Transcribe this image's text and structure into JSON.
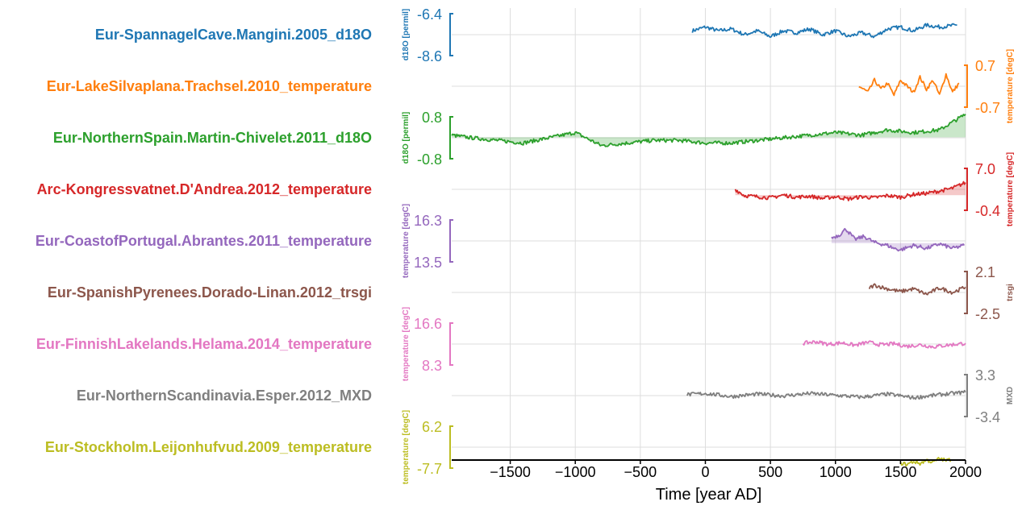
{
  "chart_data": {
    "type": "line",
    "layout": "stacked",
    "xlabel": "Time [year AD]",
    "xlim": [
      -1950,
      2000
    ],
    "xticks": [
      -1500,
      -1000,
      -500,
      0,
      500,
      1000,
      1500,
      2000
    ],
    "grid": true,
    "series": [
      {
        "name": "Eur-SpannagelCave.Mangini.2005_d18O",
        "color": "#1f77b4",
        "ylabel": "d18O [permil]",
        "ylim": [
          "-6.4",
          "-8.6"
        ],
        "yaxis_side": "left",
        "fill": false,
        "x": [
          -100,
          0,
          100,
          200,
          300,
          400,
          500,
          600,
          700,
          800,
          900,
          1000,
          1100,
          1200,
          1300,
          1400,
          1500,
          1600,
          1700,
          1800,
          1935
        ],
        "y": [
          -7.3,
          -7.1,
          -7.3,
          -7.2,
          -7.5,
          -7.3,
          -7.6,
          -7.3,
          -7.4,
          -7.2,
          -7.5,
          -7.3,
          -7.6,
          -7.4,
          -7.6,
          -7.2,
          -7.1,
          -7.3,
          -7.0,
          -7.1,
          -7.0
        ]
      },
      {
        "name": "Eur-LakeSilvaplana.Trachsel.2010_temperature",
        "color": "#ff7f0e",
        "ylabel": "temperature [degC]",
        "ylim": [
          "0.7",
          "-0.7"
        ],
        "yaxis_side": "right",
        "fill": false,
        "x": [
          1180,
          1250,
          1300,
          1350,
          1400,
          1450,
          1500,
          1550,
          1600,
          1650,
          1700,
          1750,
          1800,
          1850,
          1900,
          1950
        ],
        "y": [
          0.0,
          -0.2,
          0.2,
          -0.1,
          0.1,
          -0.3,
          0.2,
          0.0,
          -0.2,
          0.3,
          -0.1,
          0.2,
          -0.3,
          0.4,
          -0.2,
          0.1
        ]
      },
      {
        "name": "Eur-NorthernSpain.Martin-Chivelet.2011_d18O",
        "color": "#2ca02c",
        "ylabel": "d18O [permil]",
        "ylim": [
          "0.8",
          "-0.8"
        ],
        "yaxis_side": "left",
        "fill": true,
        "x": [
          -1950,
          -1800,
          -1600,
          -1400,
          -1200,
          -1000,
          -800,
          -600,
          -400,
          -200,
          0,
          200,
          400,
          600,
          800,
          1000,
          1200,
          1400,
          1600,
          1800,
          2000
        ],
        "y": [
          0.1,
          0.0,
          -0.1,
          -0.2,
          0.0,
          0.2,
          -0.3,
          -0.2,
          -0.1,
          -0.1,
          -0.2,
          -0.2,
          -0.1,
          0.0,
          0.1,
          0.2,
          0.1,
          0.3,
          0.2,
          0.3,
          0.9
        ]
      },
      {
        "name": "Arc-Kongressvatnet.D'Andrea.2012_temperature",
        "color": "#d62728",
        "ylabel": "temperature [degC]",
        "ylim": [
          "7.0",
          "-0.4"
        ],
        "yaxis_side": "right",
        "fill": true,
        "x": [
          230,
          300,
          400,
          500,
          600,
          700,
          800,
          900,
          1000,
          1100,
          1200,
          1300,
          1400,
          1500,
          1600,
          1700,
          1800,
          1900,
          2000
        ],
        "y": [
          3.3,
          2.2,
          2.0,
          1.8,
          2.3,
          1.9,
          2.1,
          1.7,
          2.0,
          1.6,
          2.0,
          1.8,
          2.2,
          1.9,
          2.4,
          2.6,
          3.0,
          3.5,
          4.5
        ]
      },
      {
        "name": "Eur-CoastofPortugal.Abrantes.2011_temperature",
        "color": "#9467bd",
        "ylabel": "temperature [degC]",
        "ylim": [
          "16.3",
          "13.5"
        ],
        "yaxis_side": "left",
        "fill": true,
        "x": [
          970,
          1030,
          1080,
          1150,
          1220,
          1300,
          1400,
          1450,
          1500,
          1600,
          1700,
          1800,
          1900,
          1990
        ],
        "y": [
          15.1,
          15.3,
          15.7,
          15.0,
          15.2,
          14.8,
          14.6,
          14.4,
          14.3,
          14.6,
          14.4,
          14.7,
          14.4,
          14.6
        ]
      },
      {
        "name": "Eur-SpanishPyrenees.Dorado-Linan.2012_trsgi",
        "color": "#8c564b",
        "ylabel": "trsgi",
        "ylim": [
          "2.1",
          "-2.5"
        ],
        "yaxis_side": "right",
        "fill": false,
        "x": [
          1260,
          1300,
          1400,
          1500,
          1600,
          1700,
          1800,
          1900,
          2000
        ],
        "y": [
          0.3,
          0.6,
          0.2,
          -0.1,
          0.2,
          -0.4,
          0.3,
          -0.2,
          0.4
        ]
      },
      {
        "name": "Eur-FinnishLakelands.Helama.2014_temperature",
        "color": "#e377c2",
        "ylabel": "temperature [degC]",
        "ylim": [
          "16.6",
          "8.3"
        ],
        "yaxis_side": "left",
        "fill": false,
        "x": [
          750,
          850,
          950,
          1050,
          1150,
          1250,
          1350,
          1450,
          1550,
          1650,
          1750,
          1850,
          2000
        ],
        "y": [
          12.6,
          12.9,
          12.4,
          12.7,
          12.2,
          12.8,
          12.3,
          12.5,
          12.0,
          12.3,
          11.9,
          12.2,
          12.6
        ]
      },
      {
        "name": "Eur-NorthernScandinavia.Esper.2012_MXD",
        "color": "#7f7f7f",
        "ylabel": "MXD",
        "ylim": [
          "3.3",
          "-3.4"
        ],
        "yaxis_side": "right",
        "fill": false,
        "x": [
          -140,
          0,
          200,
          400,
          600,
          800,
          1000,
          1200,
          1400,
          1600,
          1800,
          2000
        ],
        "y": [
          0.1,
          0.3,
          -0.2,
          0.2,
          -0.1,
          0.3,
          0.0,
          -0.3,
          0.2,
          -0.4,
          0.1,
          0.5
        ]
      },
      {
        "name": "Eur-Stockholm.Leijonhufvud.2009_temperature",
        "color": "#bcbd22",
        "ylabel": "temperature [degC]",
        "ylim": [
          "6.2",
          "-7.7"
        ],
        "yaxis_side": "left",
        "fill": false,
        "x": [
          1500,
          1550,
          1600,
          1650,
          1700,
          1750,
          1800,
          1850,
          1890
        ],
        "y": [
          -6.0,
          -6.5,
          -5.5,
          -6.2,
          -5.0,
          -5.8,
          -4.5,
          -5.2,
          -4.8
        ]
      }
    ]
  }
}
